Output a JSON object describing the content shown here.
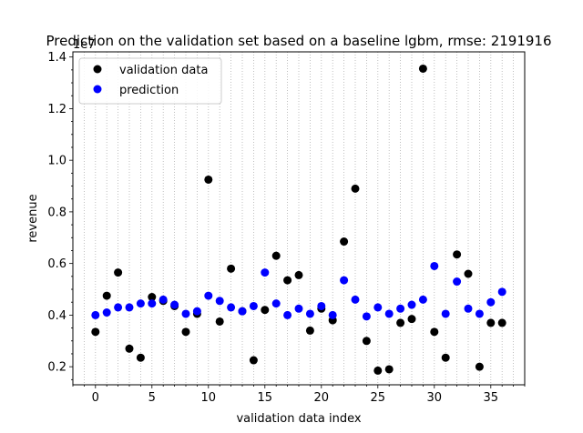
{
  "chart_data": {
    "type": "scatter",
    "title": "Prediction on the validation set based on a baseline lgbm, rmse: 2191916",
    "xlabel": "validation data index",
    "ylabel": "revenue",
    "y_offset_label": "1e7",
    "xlim": [
      -2,
      38
    ],
    "ylim": [
      0.13,
      1.42
    ],
    "x_ticks": [
      0,
      5,
      10,
      15,
      20,
      25,
      30,
      35
    ],
    "x_tick_labels": [
      "0",
      "5",
      "10",
      "15",
      "20",
      "25",
      "30",
      "35"
    ],
    "y_ticks": [
      0.2,
      0.4,
      0.6,
      0.8,
      1.0,
      1.2,
      1.4
    ],
    "y_tick_labels": [
      "0.2",
      "0.4",
      "0.6",
      "0.8",
      "1.0",
      "1.2",
      "1.4"
    ],
    "grid": "x-minor-dotted",
    "legend": "top-left",
    "series": [
      {
        "name": "validation data",
        "color": "#000000",
        "x": [
          0,
          1,
          2,
          3,
          4,
          5,
          6,
          7,
          8,
          9,
          10,
          11,
          12,
          13,
          14,
          15,
          16,
          17,
          18,
          19,
          20,
          21,
          22,
          23,
          24,
          25,
          26,
          27,
          28,
          29,
          30,
          31,
          32,
          33,
          34,
          35,
          36
        ],
        "y": [
          0.335,
          0.475,
          0.565,
          0.27,
          0.235,
          0.47,
          0.455,
          0.435,
          0.335,
          0.405,
          0.925,
          0.375,
          0.58,
          0.415,
          0.225,
          0.42,
          0.63,
          0.535,
          0.555,
          0.34,
          0.425,
          0.38,
          0.685,
          0.89,
          0.3,
          0.185,
          0.19,
          0.37,
          0.385,
          1.355,
          0.335,
          0.235,
          0.635,
          0.56,
          0.2,
          0.37,
          0.37
        ]
      },
      {
        "name": "prediction",
        "color": "#0000ff",
        "x": [
          0,
          1,
          2,
          3,
          4,
          5,
          6,
          7,
          8,
          9,
          10,
          11,
          12,
          13,
          14,
          15,
          16,
          17,
          18,
          19,
          20,
          21,
          22,
          23,
          24,
          25,
          26,
          27,
          28,
          29,
          30,
          31,
          32,
          33,
          34,
          35,
          36
        ],
        "y": [
          0.4,
          0.41,
          0.43,
          0.43,
          0.445,
          0.445,
          0.46,
          0.44,
          0.405,
          0.415,
          0.475,
          0.455,
          0.43,
          0.415,
          0.435,
          0.565,
          0.445,
          0.4,
          0.425,
          0.405,
          0.435,
          0.4,
          0.535,
          0.46,
          0.395,
          0.43,
          0.405,
          0.425,
          0.44,
          0.46,
          0.59,
          0.405,
          0.53,
          0.425,
          0.405,
          0.45,
          0.49
        ]
      }
    ]
  }
}
